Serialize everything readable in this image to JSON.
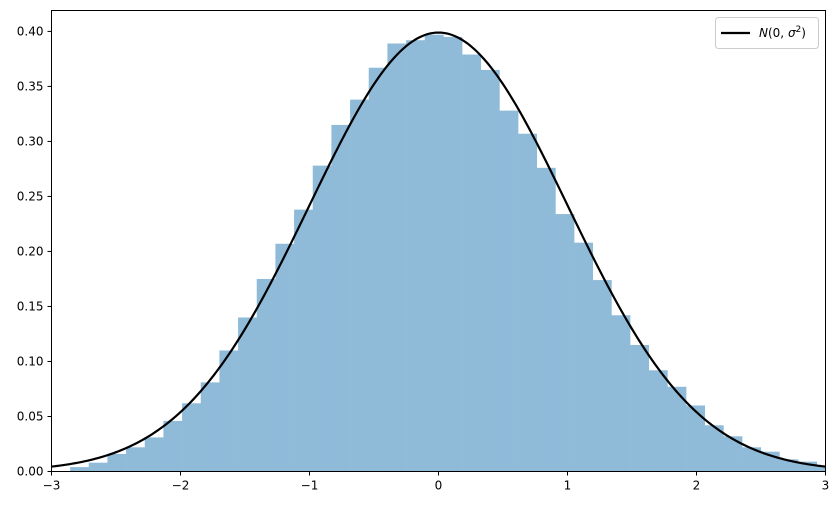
{
  "chart_data": {
    "type": "bar",
    "subtype": "histogram-with-density-curve",
    "title": "",
    "xlabel": "",
    "ylabel": "",
    "xlim": [
      -3,
      3
    ],
    "ylim": [
      0,
      0.419
    ],
    "grid": false,
    "legend_placement": "top-right",
    "x_ticks": [
      "−3",
      "−2",
      "−1",
      "0",
      "1",
      "2",
      "3"
    ],
    "x_tick_values": [
      -3,
      -2,
      -1,
      0,
      1,
      2,
      3
    ],
    "y_ticks": [
      "0.00",
      "0.05",
      "0.10",
      "0.15",
      "0.20",
      "0.25",
      "0.30",
      "0.35",
      "0.40"
    ],
    "y_tick_values": [
      0,
      0.05,
      0.1,
      0.15,
      0.2,
      0.25,
      0.3,
      0.35,
      0.4
    ],
    "histogram": {
      "bin_start": -2.856,
      "bin_width": 0.1447,
      "values": [
        0.004,
        0.008,
        0.016,
        0.022,
        0.031,
        0.046,
        0.062,
        0.081,
        0.11,
        0.14,
        0.175,
        0.207,
        0.238,
        0.278,
        0.315,
        0.338,
        0.367,
        0.389,
        0.392,
        0.397,
        0.395,
        0.379,
        0.365,
        0.328,
        0.307,
        0.276,
        0.234,
        0.208,
        0.174,
        0.142,
        0.115,
        0.092,
        0.077,
        0.06,
        0.042,
        0.032,
        0.022,
        0.018,
        0.011,
        0.009,
        0.005
      ],
      "color": "#8fbbd9"
    },
    "series": [
      {
        "name": "N(0, σ²)",
        "legend_label": {
          "prefix": "N",
          "open": "(0, ",
          "sigma": "σ",
          "sup": "2",
          "close": ")"
        },
        "type": "line",
        "function": "normal_pdf",
        "mean": 0,
        "sigma": 1,
        "color": "#000000"
      }
    ]
  }
}
